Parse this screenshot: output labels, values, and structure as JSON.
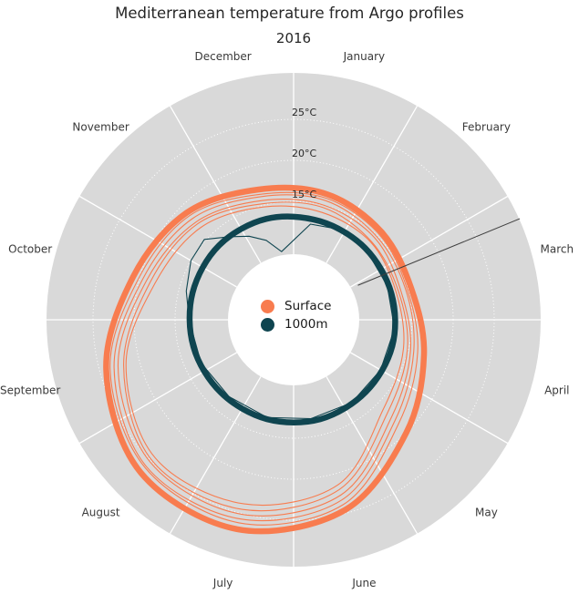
{
  "title": "Mediterranean temperature from Argo profiles",
  "subtitle": "2016",
  "colors": {
    "surface": "#f87c4f",
    "deep": "#0f4550",
    "plot_bg": "#d9d9d9",
    "grid": "#ffffff",
    "stray": "#3f3f3f",
    "title_text": "#262626",
    "month_text": "#3a3a3a",
    "tick_text": "#262626"
  },
  "legend": {
    "items": [
      {
        "label": "Surface",
        "color_key": "surface"
      },
      {
        "label": "1000m",
        "color_key": "deep"
      }
    ]
  },
  "chart_data": {
    "type": "line",
    "projection": "polar",
    "title": "Mediterranean temperature from Argo profiles",
    "subtitle": "2016",
    "angle_axis": "months of the year, clockwise from top; January centered at 15° right of vertical",
    "months": [
      "January",
      "February",
      "March",
      "April",
      "May",
      "June",
      "July",
      "August",
      "September",
      "October",
      "November",
      "December"
    ],
    "radial_axis": {
      "unit": "°C",
      "tick_values": [
        15,
        20,
        25
      ],
      "tick_labels": [
        "15°C",
        "20°C",
        "25°C"
      ],
      "range_approx": [
        8.6,
        30.7
      ],
      "grid": "dotted white circles, solid white month spokes"
    },
    "legend_entries": [
      "Surface",
      "1000m"
    ],
    "series": [
      {
        "name": "Surface monthly mean",
        "legend": "Surface",
        "type": "monthly",
        "color": "#f87c4f",
        "width": 6.5,
        "values": [
          16.4,
          15.7,
          15.4,
          17.0,
          20.0,
          24.6,
          27.0,
          26.9,
          24.2,
          20.8,
          19.0,
          17.0
        ]
      },
      {
        "name": "1000m monthly mean",
        "legend": "1000m",
        "type": "monthly",
        "color": "#0f4550",
        "width": 6.5,
        "values": [
          13.0,
          12.9,
          12.9,
          13.0,
          13.0,
          13.1,
          13.1,
          13.1,
          13.2,
          13.3,
          13.4,
          13.3
        ]
      },
      {
        "name": "Surface profile 1",
        "legend": "Surface",
        "type": "monthly",
        "color": "#f87c4f",
        "width": 1.1,
        "values": [
          15.9,
          15.3,
          14.9,
          16.2,
          18.6,
          23.9,
          26.2,
          26.1,
          23.7,
          20.1,
          18.5,
          16.4
        ]
      },
      {
        "name": "Surface profile 2",
        "legend": "Surface",
        "type": "monthly",
        "color": "#f87c4f",
        "width": 1.1,
        "values": [
          15.6,
          14.9,
          14.7,
          15.7,
          18.0,
          23.3,
          25.7,
          25.9,
          23.2,
          19.6,
          18.0,
          16.1
        ]
      },
      {
        "name": "Surface profile 3",
        "legend": "Surface",
        "type": "monthly",
        "color": "#f87c4f",
        "width": 1.1,
        "values": [
          15.0,
          14.6,
          14.1,
          15.3,
          17.4,
          22.7,
          25.1,
          25.2,
          22.7,
          19.1,
          17.4,
          15.6
        ]
      },
      {
        "name": "Surface profile 4",
        "legend": "Surface",
        "type": "monthly",
        "color": "#f87c4f",
        "width": 1.1,
        "values": [
          14.7,
          14.0,
          13.8,
          14.9,
          16.7,
          22.0,
          24.5,
          24.9,
          22.0,
          18.6,
          17.1,
          15.2
        ]
      },
      {
        "name": "Surface profile 5",
        "legend": "Surface",
        "type": "monthly",
        "color": "#f87c4f",
        "width": 1.1,
        "values": [
          14.1,
          13.9,
          13.5,
          14.4,
          16.0,
          21.4,
          23.8,
          24.4,
          21.7,
          18.0,
          16.5,
          14.8
        ]
      },
      {
        "name": "1000m profile",
        "legend": "1000m",
        "type": "polar-points",
        "color": "#0f4550",
        "width": 1.1,
        "points": [
          [
            10,
            12.4
          ],
          [
            25,
            12.8
          ],
          [
            45,
            12.9
          ],
          [
            70,
            12.7
          ],
          [
            95,
            12.9
          ],
          [
            120,
            12.8
          ],
          [
            145,
            12.9
          ],
          [
            170,
            12.8
          ],
          [
            195,
            12.9
          ],
          [
            220,
            12.8
          ],
          [
            245,
            13.0
          ],
          [
            270,
            13.3
          ],
          [
            285,
            14.1
          ],
          [
            300,
            15.0
          ],
          [
            312,
            15.2
          ],
          [
            322,
            13.4
          ],
          [
            332,
            12.1
          ],
          [
            341,
            10.8
          ],
          [
            350,
            9.0
          ],
          [
            370,
            12.4
          ]
        ]
      },
      {
        "name": "stray connecting line",
        "legend": null,
        "type": "polar-points",
        "color": "#3f3f3f",
        "width": 1,
        "points": [
          [
            61.8,
            9.5
          ],
          [
            65.9,
            30.7
          ]
        ]
      }
    ]
  }
}
